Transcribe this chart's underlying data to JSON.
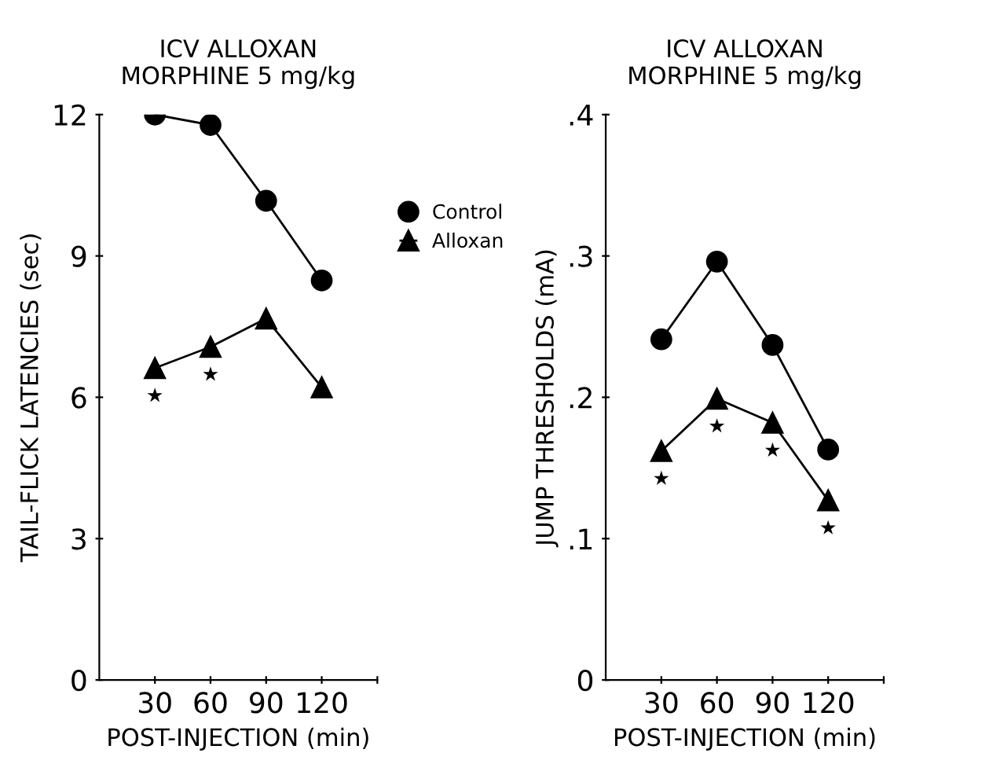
{
  "chart_data": [
    {
      "type": "line",
      "title": "ICV ALLOXAN\nMORPHINE 5 mg/kg",
      "xlabel": "POST-INJECTION (min)",
      "ylabel": "TAIL-FLICK LATENCIES (sec)",
      "x": [
        30,
        60,
        90,
        120
      ],
      "series": [
        {
          "name": "Control",
          "color": "#000000",
          "marker": "circle",
          "values": [
            12.0,
            11.78,
            10.17,
            8.48
          ]
        },
        {
          "name": "Alloxan",
          "color": "#000000",
          "marker": "triangle",
          "values": [
            6.62,
            7.07,
            7.67,
            6.21
          ]
        }
      ],
      "xlim": [
        0,
        150
      ],
      "xticks": [
        30,
        60,
        90,
        120,
        {
          "value": 150,
          "label": null
        }
      ],
      "ylim": [
        0,
        12
      ],
      "yticks": [
        0,
        3,
        6,
        9,
        12
      ],
      "annotations": [
        {
          "text": "★",
          "x": 30,
          "y": 6.62
        },
        {
          "text": "★",
          "x": 60,
          "y": 7.07
        }
      ],
      "legend": "right",
      "grid": false
    },
    {
      "type": "line",
      "title": "ICV ALLOXAN\nMORPHINE 5 mg/kg",
      "xlabel": "POST-INJECTION (min)",
      "ylabel": "JUMP THRESHOLDS (mA)",
      "x": [
        30,
        60,
        90,
        120
      ],
      "series": [
        {
          "color": "#000000",
          "marker": "circle",
          "values": [
            0.241,
            0.296,
            0.237,
            0.163
          ]
        },
        {
          "color": "#000000",
          "marker": "triangle",
          "values": [
            0.162,
            0.199,
            0.182,
            0.127
          ]
        }
      ],
      "xlim": [
        0,
        150
      ],
      "xticks": [
        30,
        60,
        90,
        120,
        {
          "value": 150,
          "label": null
        }
      ],
      "ylim": [
        0,
        0.4
      ],
      "yticks": [
        0,
        {
          "value": 0.1,
          "label": ".1"
        },
        {
          "value": 0.2,
          "label": ".2"
        },
        {
          "value": 0.3,
          "label": ".3"
        },
        {
          "value": 0.4,
          "label": ".4"
        }
      ],
      "annotations": [
        {
          "text": "★",
          "x": 30,
          "y": 0.162
        },
        {
          "text": "★",
          "x": 60,
          "y": 0.199
        },
        {
          "text": "★",
          "x": 90,
          "y": 0.182
        },
        {
          "text": "★",
          "x": 120,
          "y": 0.127
        }
      ],
      "grid": false
    }
  ]
}
